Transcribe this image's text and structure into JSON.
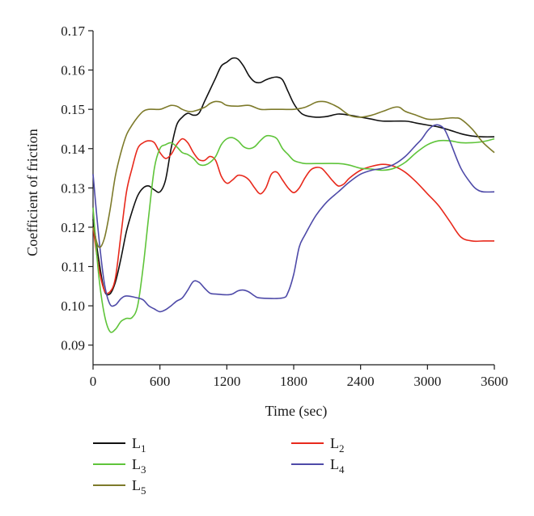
{
  "chart_data": {
    "type": "line",
    "title": "",
    "xlabel": "Time (sec)",
    "ylabel": "Coefficient of friction",
    "xlim": [
      0,
      3600
    ],
    "ylim": [
      0.085,
      0.17
    ],
    "xticks": [
      0,
      600,
      1200,
      1800,
      2400,
      3000,
      3600
    ],
    "xtick_labels": [
      "0",
      "600",
      "1200",
      "1800",
      "2400",
      "3000",
      "3600"
    ],
    "yticks": [
      0.09,
      0.1,
      0.11,
      0.12,
      0.13,
      0.14,
      0.15,
      0.16,
      0.17
    ],
    "ytick_labels": [
      "0.09",
      "0.10",
      "0.11",
      "0.12",
      "0.13",
      "0.14",
      "0.15",
      "0.16",
      "0.17"
    ],
    "grid": false,
    "legend_position": "below",
    "series": [
      {
        "name": "L1",
        "label_base": "L",
        "label_sub": "1",
        "color": "#111111",
        "points": [
          [
            0,
            0.122
          ],
          [
            50,
            0.112
          ],
          [
            100,
            0.104
          ],
          [
            150,
            0.103
          ],
          [
            200,
            0.106
          ],
          [
            250,
            0.112
          ],
          [
            300,
            0.119
          ],
          [
            350,
            0.124
          ],
          [
            400,
            0.128
          ],
          [
            450,
            0.13
          ],
          [
            500,
            0.1305
          ],
          [
            550,
            0.1295
          ],
          [
            600,
            0.129
          ],
          [
            650,
            0.132
          ],
          [
            700,
            0.14
          ],
          [
            750,
            0.146
          ],
          [
            800,
            0.148
          ],
          [
            850,
            0.149
          ],
          [
            900,
            0.1485
          ],
          [
            950,
            0.149
          ],
          [
            1000,
            0.152
          ],
          [
            1050,
            0.155
          ],
          [
            1100,
            0.158
          ],
          [
            1150,
            0.161
          ],
          [
            1200,
            0.162
          ],
          [
            1250,
            0.163
          ],
          [
            1300,
            0.1628
          ],
          [
            1350,
            0.161
          ],
          [
            1400,
            0.1585
          ],
          [
            1450,
            0.157
          ],
          [
            1500,
            0.1568
          ],
          [
            1550,
            0.1575
          ],
          [
            1600,
            0.158
          ],
          [
            1650,
            0.1582
          ],
          [
            1700,
            0.1575
          ],
          [
            1750,
            0.1545
          ],
          [
            1800,
            0.1515
          ],
          [
            1850,
            0.1495
          ],
          [
            1900,
            0.1485
          ],
          [
            2000,
            0.148
          ],
          [
            2100,
            0.1482
          ],
          [
            2200,
            0.1488
          ],
          [
            2300,
            0.1485
          ],
          [
            2400,
            0.148
          ],
          [
            2500,
            0.1475
          ],
          [
            2600,
            0.147
          ],
          [
            2800,
            0.147
          ],
          [
            2900,
            0.1465
          ],
          [
            3000,
            0.146
          ],
          [
            3100,
            0.1455
          ],
          [
            3200,
            0.1447
          ],
          [
            3300,
            0.1438
          ],
          [
            3400,
            0.1432
          ],
          [
            3500,
            0.143
          ],
          [
            3600,
            0.143
          ]
        ]
      },
      {
        "name": "L2",
        "label_base": "L",
        "label_sub": "2",
        "color": "#e8291c",
        "points": [
          [
            0,
            0.12
          ],
          [
            50,
            0.11
          ],
          [
            100,
            0.104
          ],
          [
            150,
            0.1035
          ],
          [
            200,
            0.107
          ],
          [
            250,
            0.118
          ],
          [
            300,
            0.129
          ],
          [
            350,
            0.135
          ],
          [
            400,
            0.14
          ],
          [
            450,
            0.1415
          ],
          [
            500,
            0.142
          ],
          [
            550,
            0.1415
          ],
          [
            600,
            0.139
          ],
          [
            650,
            0.1375
          ],
          [
            700,
            0.1385
          ],
          [
            750,
            0.141
          ],
          [
            800,
            0.1425
          ],
          [
            850,
            0.1415
          ],
          [
            900,
            0.139
          ],
          [
            950,
            0.1372
          ],
          [
            1000,
            0.137
          ],
          [
            1050,
            0.138
          ],
          [
            1100,
            0.137
          ],
          [
            1150,
            0.133
          ],
          [
            1200,
            0.1312
          ],
          [
            1250,
            0.132
          ],
          [
            1300,
            0.1332
          ],
          [
            1350,
            0.133
          ],
          [
            1400,
            0.132
          ],
          [
            1450,
            0.13
          ],
          [
            1500,
            0.1285
          ],
          [
            1550,
            0.13
          ],
          [
            1600,
            0.1335
          ],
          [
            1650,
            0.134
          ],
          [
            1700,
            0.132
          ],
          [
            1750,
            0.13
          ],
          [
            1800,
            0.1288
          ],
          [
            1850,
            0.13
          ],
          [
            1900,
            0.1325
          ],
          [
            1950,
            0.1345
          ],
          [
            2000,
            0.1352
          ],
          [
            2050,
            0.135
          ],
          [
            2100,
            0.1335
          ],
          [
            2150,
            0.1318
          ],
          [
            2200,
            0.1305
          ],
          [
            2250,
            0.131
          ],
          [
            2300,
            0.1325
          ],
          [
            2400,
            0.1345
          ],
          [
            2500,
            0.1355
          ],
          [
            2600,
            0.136
          ],
          [
            2700,
            0.1355
          ],
          [
            2800,
            0.134
          ],
          [
            2900,
            0.1315
          ],
          [
            3000,
            0.1285
          ],
          [
            3100,
            0.1255
          ],
          [
            3200,
            0.1215
          ],
          [
            3300,
            0.1175
          ],
          [
            3400,
            0.1165
          ],
          [
            3500,
            0.1165
          ],
          [
            3600,
            0.1165
          ]
        ]
      },
      {
        "name": "L3",
        "label_base": "L",
        "label_sub": "3",
        "color": "#5fc43a",
        "points": [
          [
            0,
            0.125
          ],
          [
            50,
            0.108
          ],
          [
            100,
            0.098
          ],
          [
            150,
            0.0935
          ],
          [
            200,
            0.094
          ],
          [
            250,
            0.096
          ],
          [
            300,
            0.0968
          ],
          [
            350,
            0.097
          ],
          [
            400,
            0.1
          ],
          [
            450,
            0.11
          ],
          [
            500,
            0.123
          ],
          [
            550,
            0.135
          ],
          [
            600,
            0.14
          ],
          [
            650,
            0.141
          ],
          [
            700,
            0.1415
          ],
          [
            750,
            0.1405
          ],
          [
            800,
            0.139
          ],
          [
            850,
            0.1385
          ],
          [
            900,
            0.1375
          ],
          [
            950,
            0.136
          ],
          [
            1000,
            0.1358
          ],
          [
            1050,
            0.1365
          ],
          [
            1100,
            0.138
          ],
          [
            1150,
            0.141
          ],
          [
            1200,
            0.1425
          ],
          [
            1250,
            0.1428
          ],
          [
            1300,
            0.142
          ],
          [
            1350,
            0.1405
          ],
          [
            1400,
            0.14
          ],
          [
            1450,
            0.1405
          ],
          [
            1500,
            0.142
          ],
          [
            1550,
            0.1432
          ],
          [
            1600,
            0.1432
          ],
          [
            1650,
            0.1425
          ],
          [
            1700,
            0.14
          ],
          [
            1750,
            0.1385
          ],
          [
            1800,
            0.137
          ],
          [
            1850,
            0.1365
          ],
          [
            1900,
            0.1362
          ],
          [
            2000,
            0.1362
          ],
          [
            2200,
            0.1362
          ],
          [
            2300,
            0.1358
          ],
          [
            2400,
            0.135
          ],
          [
            2500,
            0.1348
          ],
          [
            2600,
            0.1345
          ],
          [
            2700,
            0.135
          ],
          [
            2800,
            0.1365
          ],
          [
            2900,
            0.139
          ],
          [
            3000,
            0.141
          ],
          [
            3100,
            0.142
          ],
          [
            3200,
            0.142
          ],
          [
            3300,
            0.1415
          ],
          [
            3400,
            0.1415
          ],
          [
            3500,
            0.1418
          ],
          [
            3600,
            0.1425
          ]
        ]
      },
      {
        "name": "L4",
        "label_base": "L",
        "label_sub": "4",
        "color": "#4e4aa8",
        "points": [
          [
            0,
            0.1335
          ],
          [
            50,
            0.118
          ],
          [
            100,
            0.106
          ],
          [
            150,
            0.1005
          ],
          [
            200,
            0.1002
          ],
          [
            250,
            0.1018
          ],
          [
            300,
            0.1025
          ],
          [
            400,
            0.102
          ],
          [
            450,
            0.1015
          ],
          [
            500,
            0.1
          ],
          [
            550,
            0.0992
          ],
          [
            600,
            0.0985
          ],
          [
            650,
            0.099
          ],
          [
            700,
            0.1
          ],
          [
            750,
            0.1012
          ],
          [
            800,
            0.102
          ],
          [
            850,
            0.104
          ],
          [
            900,
            0.1062
          ],
          [
            950,
            0.106
          ],
          [
            1000,
            0.1045
          ],
          [
            1050,
            0.1032
          ],
          [
            1100,
            0.103
          ],
          [
            1200,
            0.1028
          ],
          [
            1250,
            0.103
          ],
          [
            1300,
            0.1038
          ],
          [
            1350,
            0.104
          ],
          [
            1400,
            0.1035
          ],
          [
            1450,
            0.1025
          ],
          [
            1500,
            0.102
          ],
          [
            1700,
            0.102
          ],
          [
            1750,
            0.1035
          ],
          [
            1800,
            0.108
          ],
          [
            1850,
            0.115
          ],
          [
            1900,
            0.118
          ],
          [
            2000,
            0.123
          ],
          [
            2100,
            0.1265
          ],
          [
            2200,
            0.129
          ],
          [
            2300,
            0.1315
          ],
          [
            2400,
            0.1335
          ],
          [
            2500,
            0.1345
          ],
          [
            2600,
            0.135
          ],
          [
            2700,
            0.136
          ],
          [
            2800,
            0.138
          ],
          [
            2900,
            0.141
          ],
          [
            2950,
            0.1425
          ],
          [
            3000,
            0.1445
          ],
          [
            3050,
            0.1458
          ],
          [
            3100,
            0.146
          ],
          [
            3150,
            0.145
          ],
          [
            3200,
            0.142
          ],
          [
            3300,
            0.135
          ],
          [
            3400,
            0.1308
          ],
          [
            3450,
            0.1295
          ],
          [
            3500,
            0.129
          ],
          [
            3600,
            0.129
          ]
        ]
      },
      {
        "name": "L5",
        "label_base": "L",
        "label_sub": "5",
        "color": "#7d7a2a",
        "points": [
          [
            0,
            0.12
          ],
          [
            50,
            0.115
          ],
          [
            100,
            0.117
          ],
          [
            150,
            0.124
          ],
          [
            200,
            0.133
          ],
          [
            250,
            0.139
          ],
          [
            300,
            0.1435
          ],
          [
            350,
            0.146
          ],
          [
            400,
            0.148
          ],
          [
            450,
            0.1495
          ],
          [
            500,
            0.15
          ],
          [
            600,
            0.15
          ],
          [
            650,
            0.1505
          ],
          [
            700,
            0.151
          ],
          [
            750,
            0.1508
          ],
          [
            800,
            0.15
          ],
          [
            850,
            0.1495
          ],
          [
            900,
            0.1495
          ],
          [
            1000,
            0.1505
          ],
          [
            1050,
            0.1515
          ],
          [
            1100,
            0.152
          ],
          [
            1150,
            0.1518
          ],
          [
            1200,
            0.151
          ],
          [
            1300,
            0.1508
          ],
          [
            1400,
            0.151
          ],
          [
            1500,
            0.15
          ],
          [
            1600,
            0.15
          ],
          [
            1700,
            0.15
          ],
          [
            1800,
            0.15
          ],
          [
            1900,
            0.1505
          ],
          [
            2000,
            0.1518
          ],
          [
            2050,
            0.152
          ],
          [
            2100,
            0.1518
          ],
          [
            2200,
            0.1505
          ],
          [
            2300,
            0.1485
          ],
          [
            2400,
            0.148
          ],
          [
            2500,
            0.1485
          ],
          [
            2600,
            0.1495
          ],
          [
            2700,
            0.1505
          ],
          [
            2750,
            0.1505
          ],
          [
            2800,
            0.1495
          ],
          [
            2900,
            0.1485
          ],
          [
            3000,
            0.1475
          ],
          [
            3100,
            0.1475
          ],
          [
            3200,
            0.1478
          ],
          [
            3250,
            0.1478
          ],
          [
            3300,
            0.1475
          ],
          [
            3400,
            0.145
          ],
          [
            3500,
            0.1415
          ],
          [
            3600,
            0.139
          ]
        ]
      }
    ]
  }
}
